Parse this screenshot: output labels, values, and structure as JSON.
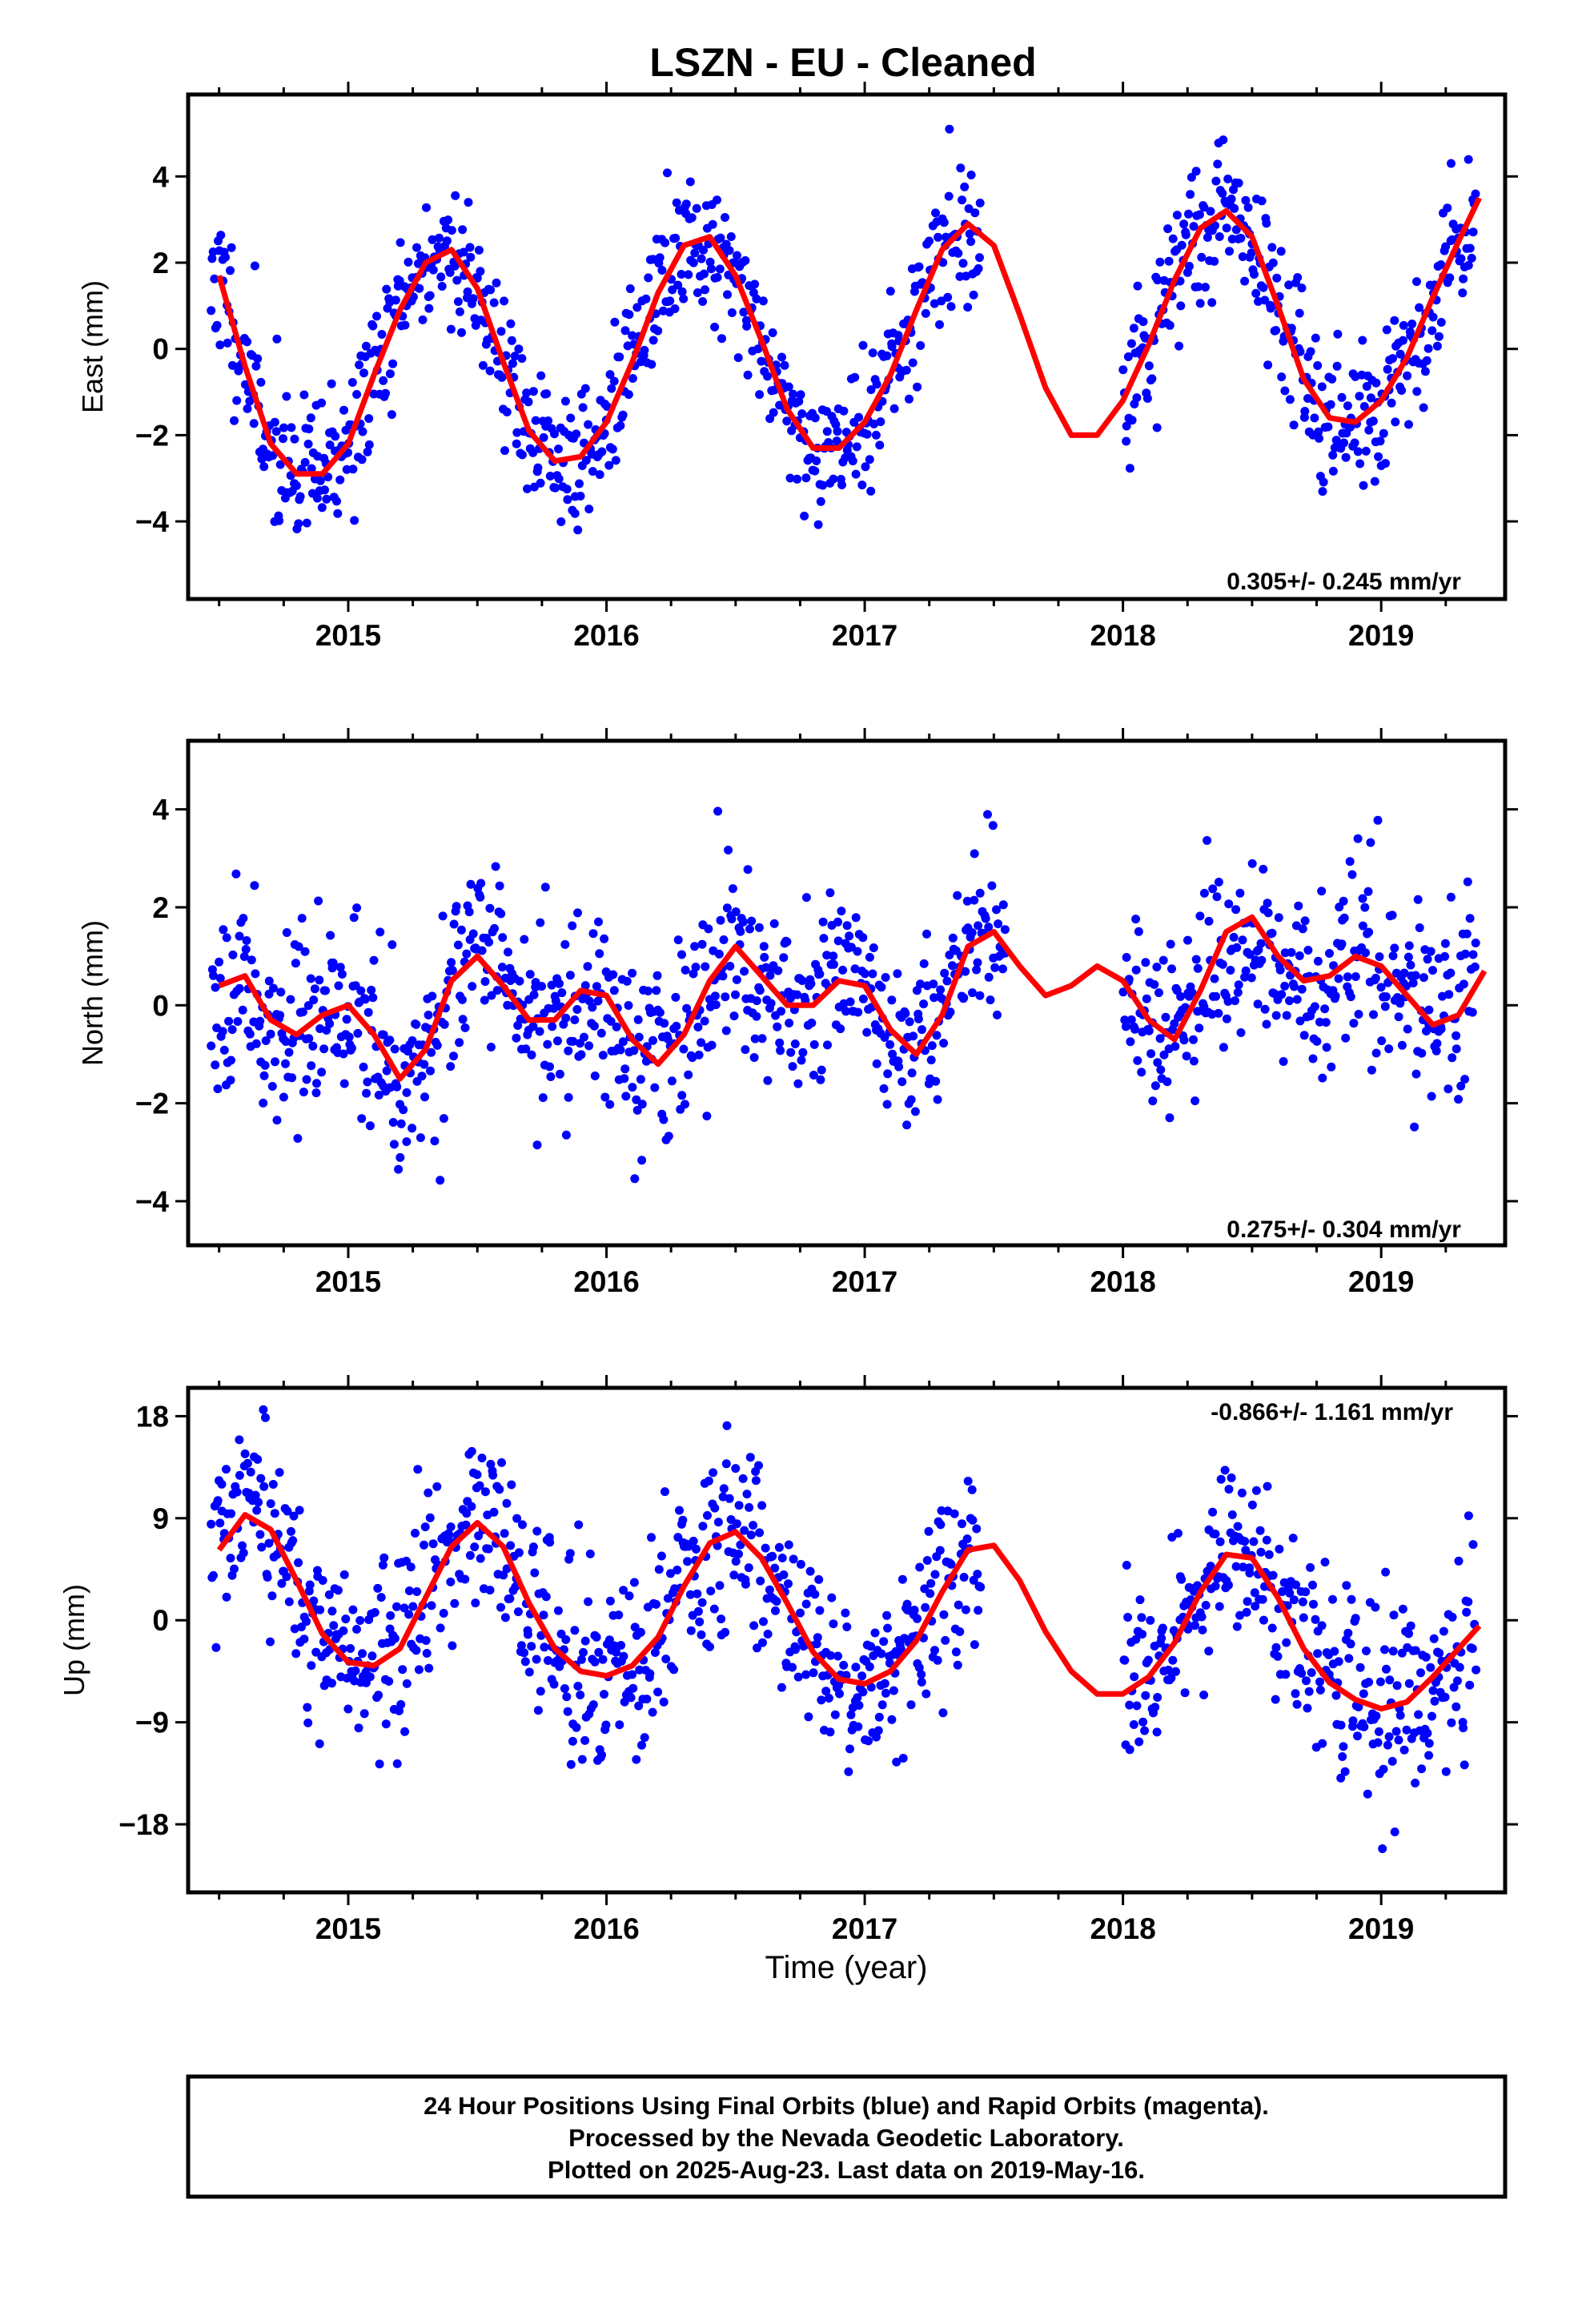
{
  "title": "LSZN  - EU - Cleaned",
  "xlabel": "Time (year)",
  "footer": {
    "line1": "24 Hour Positions Using Final Orbits (blue) and Rapid Orbits (magenta).",
    "line2": "Processed by the Nevada Geodetic Laboratory.",
    "line3": "Plotted on 2025-Aug-23. Last data on 2019-May-16."
  },
  "colors": {
    "points": "#0000ff",
    "fit": "#ff0000"
  },
  "chart_data": [
    {
      "type": "scatter",
      "ylabel": "East (mm)",
      "rate_text": "0.305+/- 0.245 mm/yr",
      "xlim": [
        2014.38,
        2019.48
      ],
      "ylim": [
        -5.8,
        5.9
      ],
      "xticks": [
        2015,
        2016,
        2017,
        2018,
        2019
      ],
      "yticks": [
        -4,
        -2,
        0,
        2,
        4
      ],
      "grid": false,
      "fit_curve": {
        "x": [
          2014.5,
          2014.6,
          2014.7,
          2014.8,
          2014.9,
          2015.0,
          2015.1,
          2015.2,
          2015.3,
          2015.4,
          2015.5,
          2015.6,
          2015.7,
          2015.8,
          2015.9,
          2016.0,
          2016.1,
          2016.2,
          2016.3,
          2016.4,
          2016.5,
          2016.6,
          2016.7,
          2016.8,
          2016.9,
          2017.0,
          2017.1,
          2017.2,
          2017.3,
          2017.4,
          2017.5,
          2017.6,
          2017.7,
          2017.8,
          2017.9,
          2018.0,
          2018.1,
          2018.2,
          2018.3,
          2018.4,
          2018.5,
          2018.6,
          2018.7,
          2018.8,
          2018.9,
          2019.0,
          2019.1,
          2019.2,
          2019.3,
          2019.38
        ],
        "y": [
          1.7,
          -0.4,
          -2.2,
          -2.9,
          -2.9,
          -2.2,
          -0.6,
          0.9,
          2.0,
          2.3,
          1.4,
          -0.3,
          -1.9,
          -2.6,
          -2.5,
          -1.7,
          -0.3,
          1.3,
          2.4,
          2.6,
          1.7,
          0.2,
          -1.4,
          -2.3,
          -2.3,
          -1.7,
          -0.6,
          0.9,
          2.3,
          2.9,
          2.4,
          0.8,
          -0.9,
          -2.0,
          -2.0,
          -1.2,
          0.1,
          1.6,
          2.8,
          3.2,
          2.6,
          1.0,
          -0.7,
          -1.6,
          -1.7,
          -1.2,
          -0.2,
          1.2,
          2.5,
          3.5
        ]
      },
      "gaps": [
        [
          2017.45,
          2018.0
        ]
      ],
      "point_noise": 0.85,
      "n_points": 1150,
      "seed": 11
    },
    {
      "type": "scatter",
      "ylabel": "North (mm)",
      "rate_text": "0.275+/- 0.304 mm/yr",
      "xlim": [
        2014.38,
        2019.48
      ],
      "ylim": [
        -4.9,
        5.4
      ],
      "xticks": [
        2015,
        2016,
        2017,
        2018,
        2019
      ],
      "yticks": [
        -4,
        -2,
        0,
        2,
        4
      ],
      "grid": false,
      "fit_curve": {
        "x": [
          2014.5,
          2014.6,
          2014.7,
          2014.8,
          2014.9,
          2015.0,
          2015.1,
          2015.2,
          2015.3,
          2015.4,
          2015.5,
          2015.6,
          2015.7,
          2015.8,
          2015.9,
          2016.0,
          2016.1,
          2016.2,
          2016.3,
          2016.4,
          2016.5,
          2016.6,
          2016.7,
          2016.8,
          2016.9,
          2017.0,
          2017.1,
          2017.2,
          2017.3,
          2017.4,
          2017.5,
          2017.6,
          2017.7,
          2017.8,
          2017.9,
          2018.0,
          2018.1,
          2018.2,
          2018.3,
          2018.4,
          2018.5,
          2018.6,
          2018.7,
          2018.8,
          2018.9,
          2019.0,
          2019.1,
          2019.2,
          2019.3,
          2019.4
        ],
        "y": [
          0.4,
          0.6,
          -0.3,
          -0.6,
          -0.2,
          0.0,
          -0.6,
          -1.5,
          -0.9,
          0.5,
          1.0,
          0.4,
          -0.3,
          -0.3,
          0.3,
          0.2,
          -0.7,
          -1.2,
          -0.6,
          0.5,
          1.2,
          0.6,
          0.0,
          0.0,
          0.5,
          0.4,
          -0.5,
          -1.0,
          -0.2,
          1.2,
          1.5,
          0.8,
          0.2,
          0.4,
          0.8,
          0.5,
          -0.3,
          -0.7,
          0.3,
          1.5,
          1.8,
          1.0,
          0.5,
          0.6,
          1.0,
          0.8,
          0.2,
          -0.4,
          -0.2,
          0.7
        ]
      },
      "gaps": [
        [
          2017.55,
          2018.0
        ]
      ],
      "point_noise": 0.95,
      "n_points": 1150,
      "seed": 23
    },
    {
      "type": "scatter",
      "ylabel": "Up (mm)",
      "rate_text": "-0.866+/- 1.161 mm/yr",
      "xlim": [
        2014.38,
        2019.48
      ],
      "ylim": [
        -24,
        20.5
      ],
      "xticks": [
        2015,
        2016,
        2017,
        2018,
        2019
      ],
      "yticks": [
        -18,
        -9,
        0,
        9,
        18
      ],
      "ytick_labels": [
        "−18",
        "−9",
        "0",
        "9",
        "18"
      ],
      "grid": false,
      "fit_curve": {
        "x": [
          2014.5,
          2014.6,
          2014.7,
          2014.8,
          2014.9,
          2015.0,
          2015.1,
          2015.2,
          2015.3,
          2015.4,
          2015.5,
          2015.6,
          2015.7,
          2015.8,
          2015.9,
          2016.0,
          2016.1,
          2016.2,
          2016.3,
          2016.4,
          2016.5,
          2016.6,
          2016.7,
          2016.8,
          2016.9,
          2017.0,
          2017.1,
          2017.2,
          2017.3,
          2017.4,
          2017.5,
          2017.6,
          2017.7,
          2017.8,
          2017.9,
          2018.0,
          2018.1,
          2018.2,
          2018.3,
          2018.4,
          2018.5,
          2018.6,
          2018.7,
          2018.8,
          2018.9,
          2019.0,
          2019.1,
          2019.2,
          2019.3,
          2019.38
        ],
        "y": [
          6.2,
          9.3,
          8.0,
          3.5,
          -1.2,
          -3.7,
          -4.0,
          -2.5,
          2.0,
          6.5,
          8.6,
          6.5,
          1.5,
          -2.5,
          -4.5,
          -4.9,
          -4.0,
          -1.5,
          3.0,
          6.8,
          7.8,
          5.5,
          1.5,
          -2.8,
          -5.2,
          -5.6,
          -4.5,
          -1.8,
          2.5,
          6.2,
          6.6,
          3.5,
          -1.0,
          -4.5,
          -6.5,
          -6.5,
          -5.0,
          -2.0,
          2.5,
          5.8,
          5.5,
          2.0,
          -2.5,
          -5.5,
          -7.0,
          -7.8,
          -7.2,
          -5.0,
          -2.5,
          -0.5
        ]
      },
      "gaps": [
        [
          2017.45,
          2018.0
        ]
      ],
      "point_noise": 4.2,
      "n_points": 1150,
      "seed": 37
    }
  ]
}
